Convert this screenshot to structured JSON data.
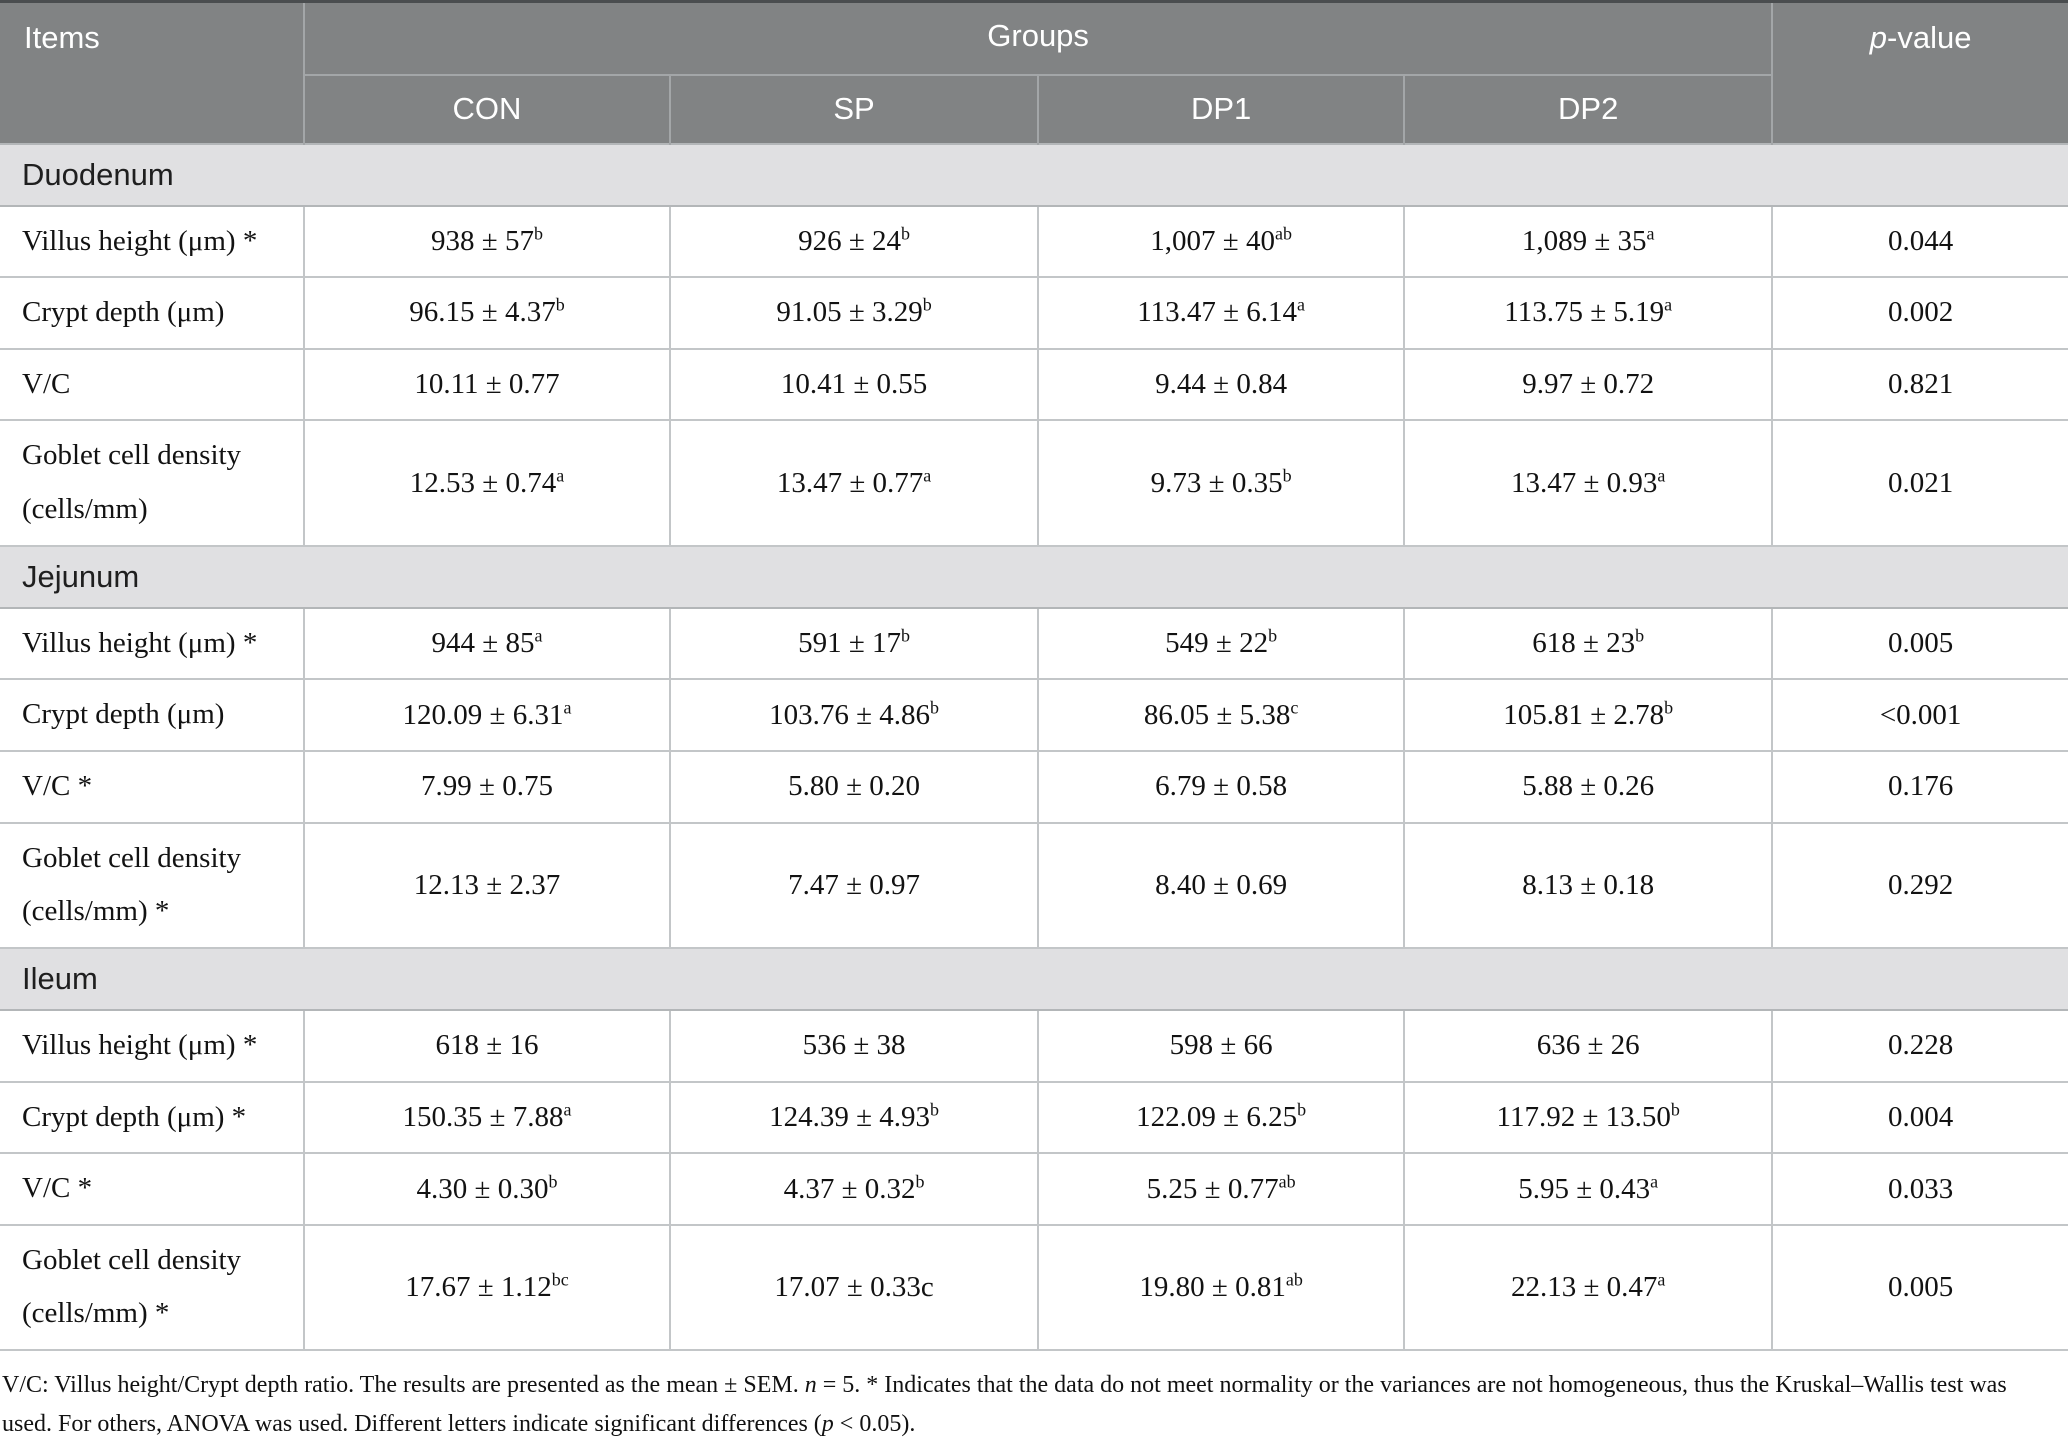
{
  "colors": {
    "header_bg": "#818384",
    "header_text": "#ffffff",
    "header_divider": "#a3a6a8",
    "section_bg": "#e0e0e2",
    "section_text": "#1f1f1f",
    "body_text": "#121212",
    "grid_line": "#c3c6c8",
    "table_top_line": "#4a4d4f",
    "table_bottom_line": "#9b9ea0"
  },
  "table": {
    "header": {
      "items_label": "Items",
      "groups_label": "Groups",
      "group_columns": [
        "CON",
        "SP",
        "DP1",
        "DP2"
      ],
      "p_value_italic": "p",
      "p_value_rest": "-value"
    },
    "sections": [
      {
        "name": "Duodenum",
        "rows": [
          {
            "label": "Villus height (μm) *",
            "cells": [
              {
                "text": "938 ± 57",
                "sup": "b"
              },
              {
                "text": "926 ± 24",
                "sup": "b"
              },
              {
                "text": "1,007 ± 40",
                "sup": "ab"
              },
              {
                "text": "1,089 ± 35",
                "sup": "a"
              }
            ],
            "p": "0.044"
          },
          {
            "label": "Crypt depth (μm)",
            "cells": [
              {
                "text": "96.15 ± 4.37",
                "sup": "b"
              },
              {
                "text": "91.05 ± 3.29",
                "sup": "b"
              },
              {
                "text": "113.47 ± 6.14",
                "sup": "a"
              },
              {
                "text": "113.75 ± 5.19",
                "sup": "a"
              }
            ],
            "p": "0.002"
          },
          {
            "label": "V/C",
            "cells": [
              {
                "text": "10.11 ± 0.77"
              },
              {
                "text": "10.41 ± 0.55"
              },
              {
                "text": "9.44 ± 0.84"
              },
              {
                "text": "9.97 ± 0.72"
              }
            ],
            "p": "0.821"
          },
          {
            "label": "Goblet cell density (cells/mm)",
            "cells": [
              {
                "text": "12.53 ± 0.74",
                "sup": "a"
              },
              {
                "text": "13.47 ± 0.77",
                "sup": "a"
              },
              {
                "text": "9.73 ± 0.35",
                "sup": "b"
              },
              {
                "text": "13.47 ± 0.93",
                "sup": "a"
              }
            ],
            "p": "0.021"
          }
        ]
      },
      {
        "name": "Jejunum",
        "rows": [
          {
            "label": "Villus height (μm) *",
            "cells": [
              {
                "text": "944 ± 85",
                "sup": "a"
              },
              {
                "text": "591 ± 17",
                "sup": "b"
              },
              {
                "text": "549 ± 22",
                "sup": "b"
              },
              {
                "text": "618 ± 23",
                "sup": "b"
              }
            ],
            "p": "0.005"
          },
          {
            "label": "Crypt depth (μm)",
            "cells": [
              {
                "text": "120.09 ± 6.31",
                "sup": "a"
              },
              {
                "text": "103.76 ± 4.86",
                "sup": "b"
              },
              {
                "text": "86.05 ± 5.38",
                "sup": "c"
              },
              {
                "text": "105.81 ± 2.78",
                "sup": "b"
              }
            ],
            "p": "<0.001"
          },
          {
            "label": "V/C *",
            "cells": [
              {
                "text": "7.99 ± 0.75"
              },
              {
                "text": "5.80 ± 0.20"
              },
              {
                "text": "6.79 ± 0.58"
              },
              {
                "text": "5.88 ± 0.26"
              }
            ],
            "p": "0.176"
          },
          {
            "label": "Goblet cell density (cells/mm) *",
            "cells": [
              {
                "text": "12.13 ± 2.37"
              },
              {
                "text": "7.47 ± 0.97"
              },
              {
                "text": "8.40 ± 0.69"
              },
              {
                "text": "8.13 ± 0.18"
              }
            ],
            "p": "0.292"
          }
        ]
      },
      {
        "name": "Ileum",
        "rows": [
          {
            "label": "Villus height (μm) *",
            "cells": [
              {
                "text": "618 ± 16"
              },
              {
                "text": "536 ± 38"
              },
              {
                "text": "598 ± 66"
              },
              {
                "text": "636 ± 26"
              }
            ],
            "p": "0.228"
          },
          {
            "label": "Crypt depth (μm) *",
            "cells": [
              {
                "text": "150.35 ± 7.88",
                "sup": "a"
              },
              {
                "text": "124.39 ± 4.93",
                "sup": "b"
              },
              {
                "text": "122.09 ± 6.25",
                "sup": "b"
              },
              {
                "text": "117.92 ± 13.50",
                "sup": "b"
              }
            ],
            "p": "0.004"
          },
          {
            "label": "V/C *",
            "cells": [
              {
                "text": "4.30 ± 0.30",
                "sup": "b"
              },
              {
                "text": "4.37 ± 0.32",
                "sup": "b"
              },
              {
                "text": "5.25 ± 0.77",
                "sup": "ab"
              },
              {
                "text": "5.95 ± 0.43",
                "sup": "a"
              }
            ],
            "p": "0.033"
          },
          {
            "label": "Goblet cell density (cells/mm) *",
            "cells": [
              {
                "text": "17.67 ± 1.12",
                "sup": "bc"
              },
              {
                "text": "17.07 ± 0.33c"
              },
              {
                "text": "19.80 ± 0.81",
                "sup": "ab"
              },
              {
                "text": "22.13 ± 0.47",
                "sup": "a"
              }
            ],
            "p": "0.005"
          }
        ]
      }
    ]
  },
  "footnote": {
    "segments": [
      {
        "text": "V/C: Villus height/Crypt depth ratio. The results are presented as the mean ± SEM. "
      },
      {
        "text": "n",
        "italic": true
      },
      {
        "text": " = 5. * Indicates that the data do not meet normality or the variances are not homogeneous, thus the Kruskal–Wallis test was used. For others, ANOVA was used. Different letters indicate significant differences ("
      },
      {
        "text": "p",
        "italic": true
      },
      {
        "text": " < 0.05)."
      }
    ]
  }
}
